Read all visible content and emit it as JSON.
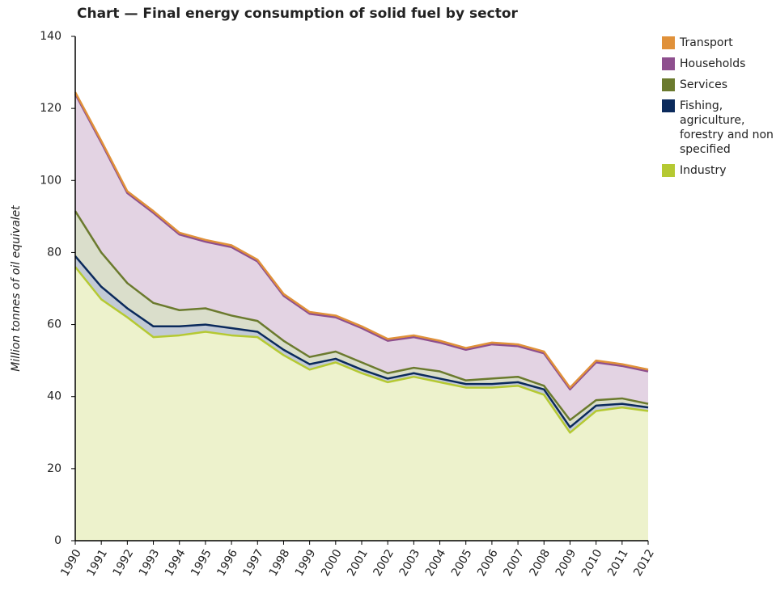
{
  "chart_data": {
    "type": "stacked_area",
    "title": "Chart — Final energy consumption of solid fuel by sector",
    "y_label": "Million tonnes of oil equivalet",
    "categories": [
      "1990",
      "1991",
      "1992",
      "1993",
      "1994",
      "1995",
      "1996",
      "1997",
      "1998",
      "1999",
      "2000",
      "2001",
      "2002",
      "2003",
      "2004",
      "2005",
      "2006",
      "2007",
      "2008",
      "2009",
      "2010",
      "2011",
      "2012"
    ],
    "ylim": [
      0,
      140
    ],
    "yticks": [
      0,
      20,
      40,
      60,
      80,
      100,
      120,
      140
    ],
    "grid": false,
    "series": [
      {
        "name": "Industry",
        "color": "#b5c932",
        "values": [
          76,
          67,
          62,
          56.5,
          57,
          58,
          57,
          56.5,
          51.5,
          47.5,
          49.5,
          46.5,
          44,
          45.5,
          44,
          42.5,
          42.5,
          43,
          40.5,
          30,
          36,
          37,
          36
        ]
      },
      {
        "name": "Fishing, agriculture, forestry and non specified",
        "color": "#0b2a5c",
        "values": [
          3,
          3.5,
          2.5,
          3,
          2.5,
          2,
          2,
          1.5,
          1.5,
          1.5,
          1,
          1,
          1,
          1,
          1,
          1,
          1,
          1,
          1.5,
          1.5,
          1.5,
          1,
          1
        ]
      },
      {
        "name": "Services",
        "color": "#6b7a2e",
        "values": [
          12.5,
          9.5,
          7,
          6.5,
          4.5,
          4.5,
          3.5,
          3,
          2.5,
          2,
          2,
          2,
          1.5,
          1.5,
          2,
          1,
          1.5,
          1.5,
          1,
          2,
          1.5,
          1.5,
          1
        ]
      },
      {
        "name": "Households",
        "color": "#8e4f8e",
        "values": [
          32.5,
          30.5,
          25,
          25,
          21,
          18.5,
          19,
          16.5,
          12.5,
          12,
          9.5,
          9.5,
          9,
          8.5,
          8,
          8.5,
          9.5,
          8.5,
          9,
          8.5,
          10.5,
          9,
          9
        ]
      },
      {
        "name": "Transport",
        "color": "#e0913a",
        "values": [
          0.5,
          0.5,
          0.5,
          0.5,
          0.5,
          0.5,
          0.5,
          0.5,
          0.5,
          0.5,
          0.5,
          0.5,
          0.5,
          0.5,
          0.5,
          0.5,
          0.5,
          0.5,
          0.5,
          0.5,
          0.5,
          0.5,
          0.5
        ]
      }
    ]
  }
}
